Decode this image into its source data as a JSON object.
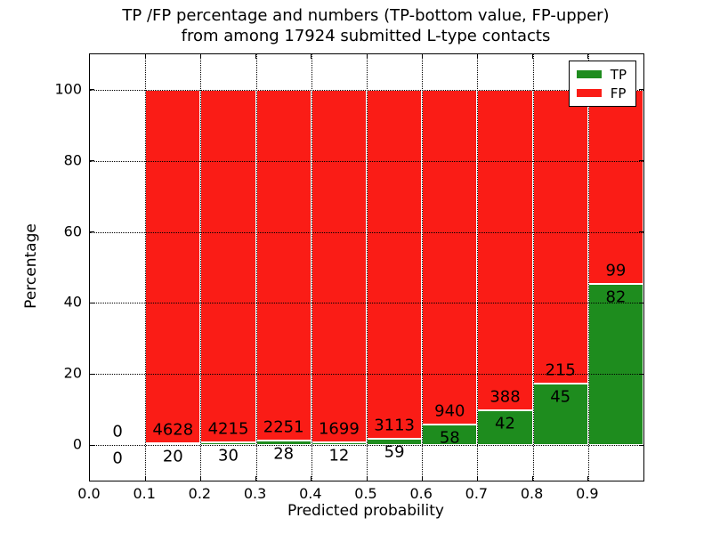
{
  "figure": {
    "title_line1": "TP /FP percentage and numbers (TP-bottom value, FP-upper)",
    "title_line2": "from among 17924 submitted L-type contacts",
    "xlabel": "Predicted probability",
    "ylabel": "Percentage"
  },
  "legend": {
    "position": "upper right",
    "items": [
      {
        "label": "TP",
        "color": "#1e8c1e"
      },
      {
        "label": "FP",
        "color": "#fa1c16"
      }
    ]
  },
  "chart_data": {
    "type": "bar",
    "stacked": true,
    "title": "TP /FP percentage and numbers (TP-bottom value, FP-upper) from among 17924 submitted L-type contacts",
    "xlabel": "Predicted probability",
    "ylabel": "Percentage",
    "total_submitted": 17924,
    "bin_edges": [
      0.0,
      0.1,
      0.2,
      0.3,
      0.4,
      0.5,
      0.6,
      0.7,
      0.8,
      0.9,
      1.0
    ],
    "x_tick_labels": [
      "0.0",
      "0.1",
      "0.2",
      "0.3",
      "0.4",
      "0.5",
      "0.6",
      "0.7",
      "0.8",
      "0.9"
    ],
    "y_ticks": [
      0,
      20,
      40,
      60,
      80,
      100
    ],
    "xlim": [
      0.0,
      1.0
    ],
    "ylim": [
      -10,
      110
    ],
    "grid": true,
    "bars_total_percent": 100,
    "legend_position": "upper right",
    "series": [
      {
        "name": "TP",
        "color": "#1e8c1e",
        "counts": [
          0,
          20,
          30,
          28,
          12,
          59,
          58,
          42,
          45,
          82
        ]
      },
      {
        "name": "FP",
        "color": "#fa1c16",
        "counts": [
          0,
          4628,
          4215,
          2251,
          1699,
          3113,
          940,
          388,
          215,
          99
        ]
      }
    ],
    "tp_percent_of_bin": [
      0,
      0.43,
      0.71,
      1.23,
      0.7,
      1.86,
      5.81,
      9.77,
      17.31,
      45.3
    ]
  }
}
